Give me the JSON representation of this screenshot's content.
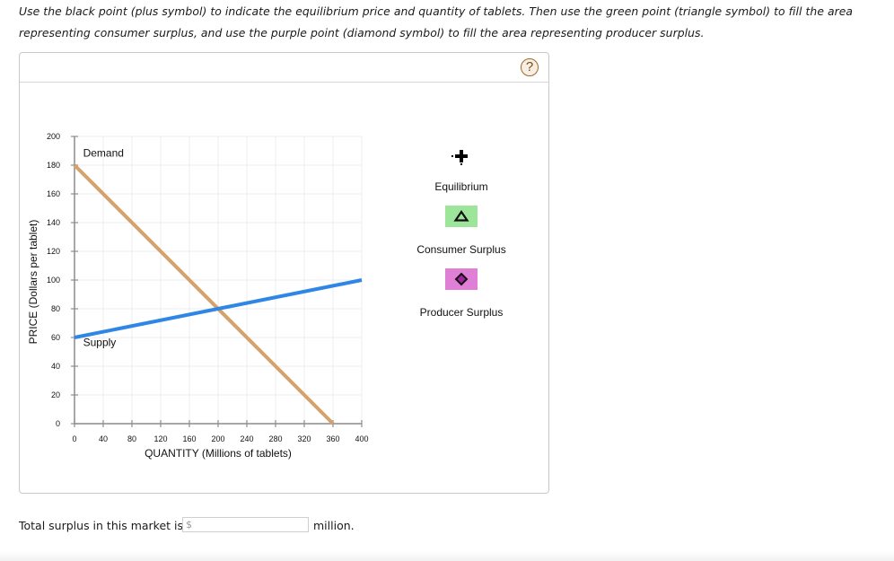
{
  "instructions": {
    "line1": "Use the black point (plus symbol) to indicate the equilibrium price and quantity of tablets. Then use the green point (triangle symbol) to fill the area",
    "line2": "representing consumer surplus, and use the purple point (diamond symbol) to fill the area representing producer surplus."
  },
  "panel": {
    "help_label": "?"
  },
  "chart_data": {
    "type": "line",
    "title": "",
    "xlabel": "QUANTITY (Millions of tablets)",
    "ylabel": "PRICE (Dollars per tablet)",
    "xlim": [
      0,
      400
    ],
    "ylim": [
      0,
      200
    ],
    "x_ticks": [
      "0",
      "40",
      "80",
      "120",
      "160",
      "200",
      "240",
      "280",
      "320",
      "360",
      "400"
    ],
    "y_ticks": [
      "0",
      "20",
      "40",
      "60",
      "80",
      "100",
      "120",
      "140",
      "160",
      "180",
      "200"
    ],
    "grid": true,
    "series": [
      {
        "name": "Demand",
        "color": "#d4a26a",
        "points": [
          [
            0,
            180
          ],
          [
            360,
            0
          ]
        ]
      },
      {
        "name": "Supply",
        "color": "#2f86e6",
        "points": [
          [
            0,
            60
          ],
          [
            400,
            100
          ]
        ]
      }
    ],
    "annotations": [
      {
        "text": "Demand",
        "x": 12,
        "y": 186
      },
      {
        "text": "Supply",
        "x": 12,
        "y": 54
      }
    ],
    "legend_position": "right"
  },
  "legend": {
    "items": [
      {
        "label": "Equilibrium",
        "symbol": "plus",
        "color": "#000000"
      },
      {
        "label": "Consumer Surplus",
        "symbol": "triangle",
        "color": "#9de59a"
      },
      {
        "label": "Producer Surplus",
        "symbol": "diamond",
        "color": "#df7fd6"
      }
    ]
  },
  "footer": {
    "label": "Total surplus in this market is",
    "input_prefix": "$",
    "input_value": "",
    "unit": "million."
  }
}
